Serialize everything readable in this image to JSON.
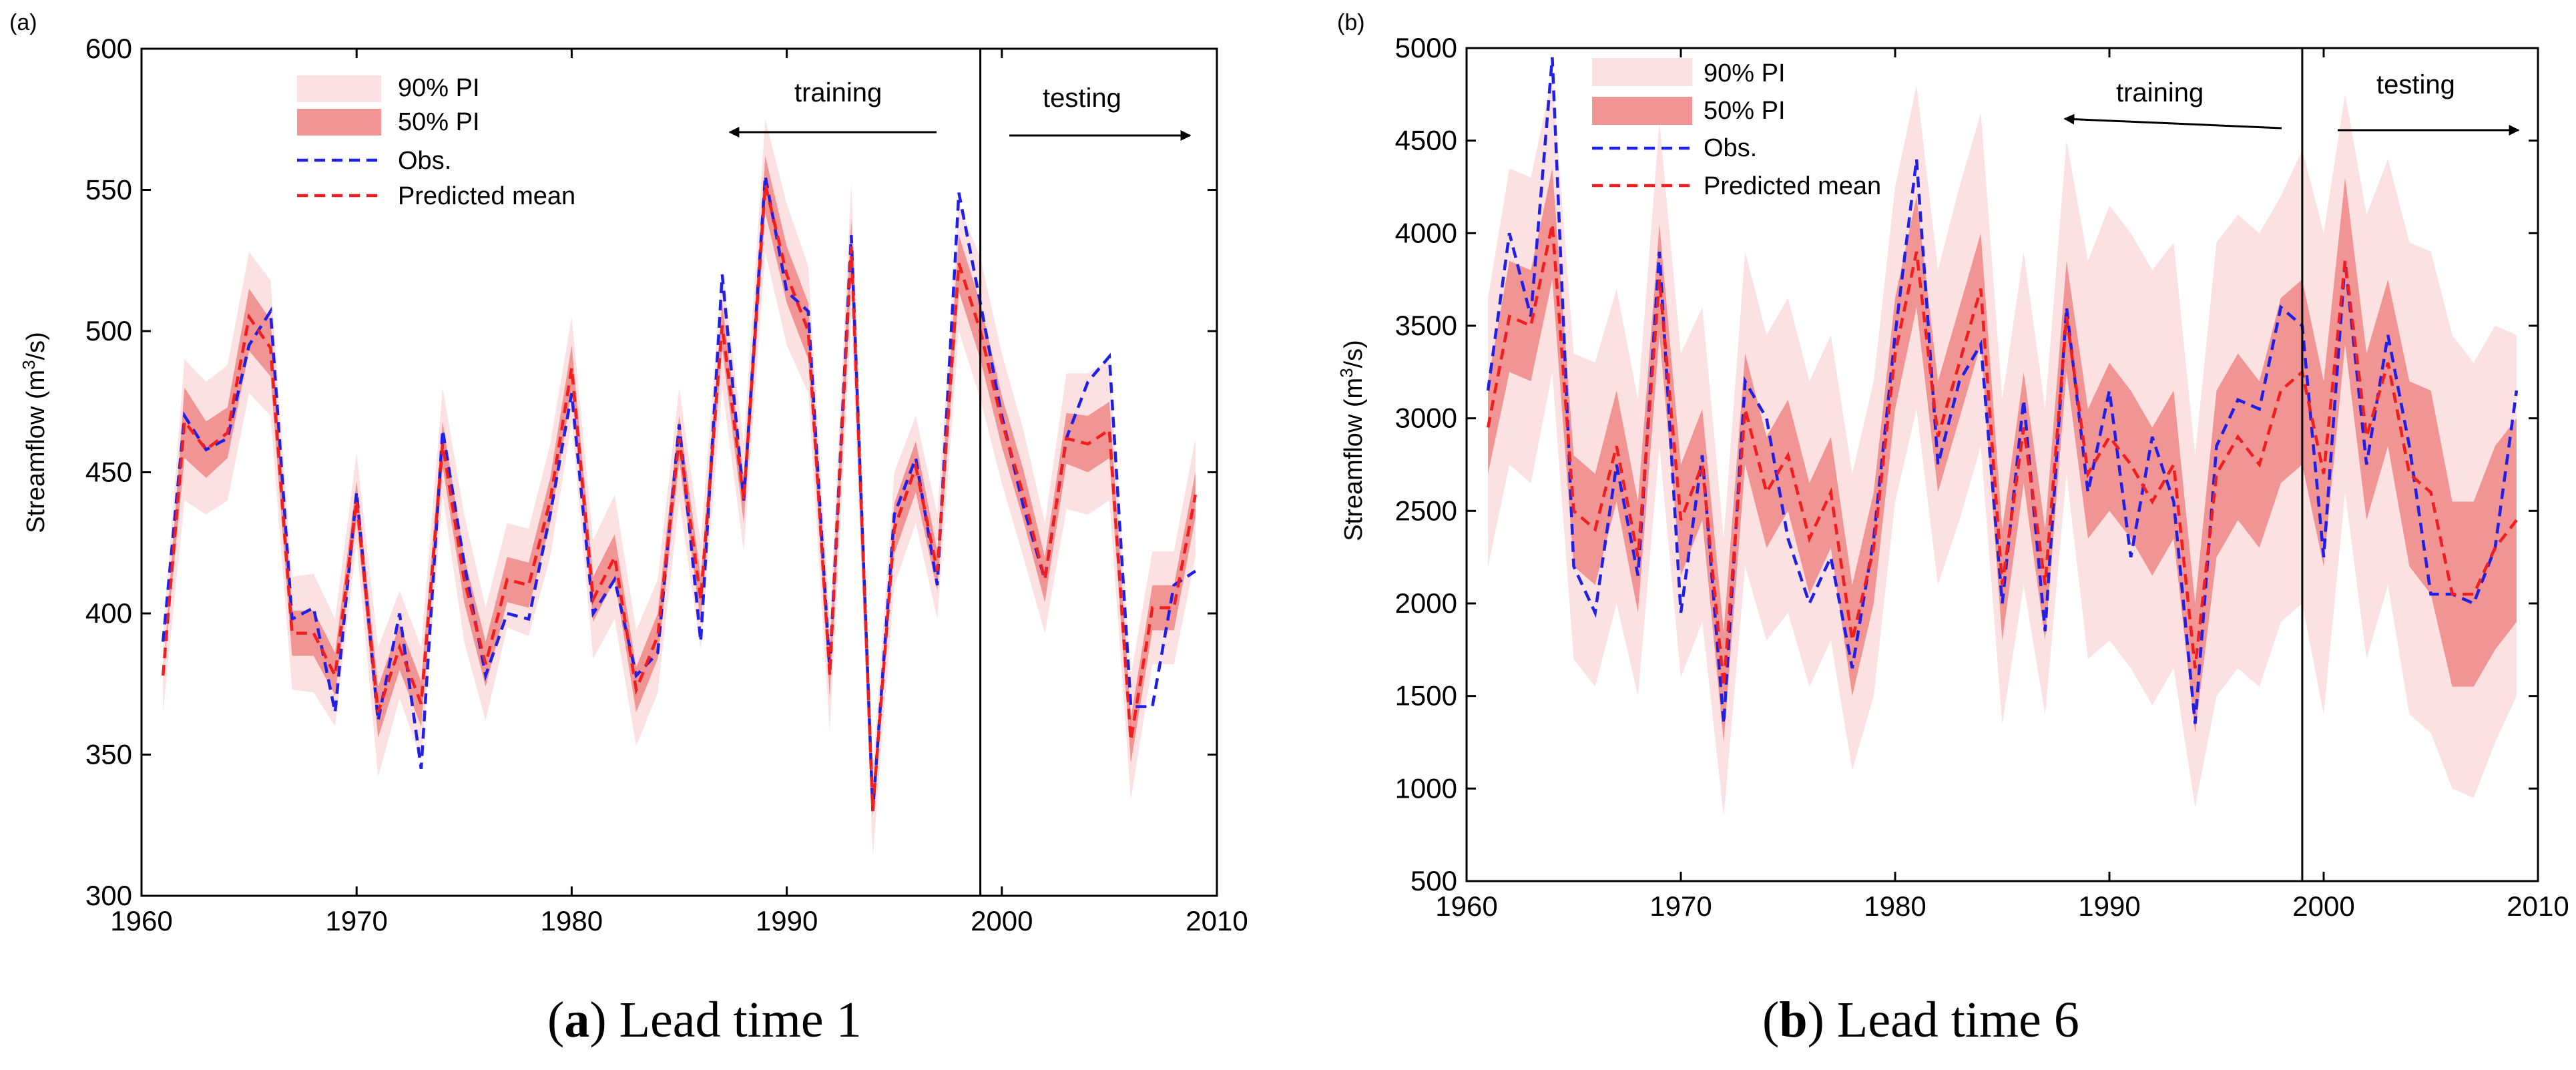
{
  "chart_data": [
    {
      "panel": "(a)",
      "type": "line",
      "title": "",
      "xlabel": "",
      "ylabel_text": "Streamflow (m",
      "ylabel_sup": "3",
      "ylabel_tail": "/s)",
      "xlim": [
        1960,
        2010
      ],
      "ylim": [
        300,
        600
      ],
      "xticks": [
        1960,
        1970,
        1980,
        1990,
        2000,
        2010
      ],
      "yticks": [
        300,
        350,
        400,
        450,
        500,
        550,
        600
      ],
      "split_year": 1999,
      "training_label": "training",
      "testing_label": "testing",
      "legend": [
        "90% PI",
        "50% PI",
        "Obs.",
        "Predicted mean"
      ],
      "colors": {
        "pi90": "#fbe1e1",
        "pi50": "#f19494",
        "obs": "#1f1fe6",
        "pred": "#f01e1e"
      },
      "x": [
        1961,
        1962,
        1963,
        1964,
        1965,
        1966,
        1967,
        1968,
        1969,
        1970,
        1971,
        1972,
        1973,
        1974,
        1975,
        1976,
        1977,
        1978,
        1979,
        1980,
        1981,
        1982,
        1983,
        1984,
        1985,
        1986,
        1987,
        1988,
        1989,
        1990,
        1991,
        1992,
        1993,
        1994,
        1995,
        1996,
        1997,
        1998,
        1999,
        2000,
        2001,
        2002,
        2003,
        2004,
        2005,
        2006,
        2007,
        2008,
        2009
      ],
      "series": [
        {
          "name": "Predicted mean",
          "values": [
            378,
            468,
            458,
            464,
            505,
            494,
            393,
            393,
            378,
            440,
            365,
            388,
            368,
            460,
            412,
            382,
            412,
            410,
            440,
            487,
            405,
            420,
            373,
            392,
            462,
            405,
            502,
            440,
            552,
            520,
            500,
            378,
            530,
            330,
            430,
            452,
            415,
            524,
            500,
            468,
            442,
            412,
            462,
            460,
            465,
            355,
            402,
            402,
            442
          ]
        },
        {
          "name": "Obs.",
          "values": [
            390,
            470,
            458,
            462,
            495,
            507,
            398,
            402,
            365,
            443,
            362,
            400,
            345,
            465,
            418,
            378,
            400,
            398,
            435,
            478,
            400,
            412,
            378,
            386,
            467,
            390,
            520,
            440,
            555,
            514,
            507,
            380,
            534,
            330,
            435,
            455,
            410,
            549,
            510,
            470,
            438,
            412,
            462,
            482,
            491,
            367,
            367,
            410,
            415
          ]
        },
        {
          "name": "50% PI lower",
          "values": [
            378,
            455,
            448,
            455,
            493,
            484,
            385,
            385,
            371,
            433,
            356,
            380,
            360,
            452,
            404,
            374,
            404,
            402,
            432,
            479,
            397,
            412,
            365,
            384,
            454,
            397,
            494,
            432,
            542,
            510,
            490,
            370,
            520,
            328,
            421,
            443,
            408,
            514,
            490,
            459,
            433,
            404,
            453,
            450,
            455,
            347,
            394,
            394,
            434
          ]
        },
        {
          "name": "50% PI upper",
          "values": [
            378,
            480,
            468,
            473,
            515,
            504,
            401,
            401,
            386,
            447,
            374,
            396,
            376,
            468,
            420,
            390,
            420,
            418,
            448,
            495,
            413,
            428,
            381,
            400,
            470,
            413,
            510,
            448,
            562,
            530,
            510,
            386,
            540,
            332,
            439,
            461,
            422,
            534,
            510,
            477,
            451,
            420,
            471,
            470,
            475,
            363,
            410,
            410,
            450
          ]
        },
        {
          "name": "90% PI lower",
          "values": [
            365,
            440,
            435,
            440,
            478,
            470,
            373,
            372,
            360,
            425,
            342,
            370,
            348,
            442,
            390,
            362,
            395,
            392,
            420,
            468,
            384,
            398,
            353,
            372,
            440,
            387,
            480,
            422,
            528,
            495,
            478,
            358,
            505,
            314,
            410,
            432,
            398,
            500,
            476,
            446,
            420,
            393,
            437,
            435,
            440,
            334,
            382,
            382,
            420
          ]
        },
        {
          "name": "90% PI upper",
          "values": [
            392,
            490,
            482,
            488,
            528,
            518,
            413,
            414,
            398,
            457,
            388,
            408,
            388,
            480,
            435,
            402,
            432,
            430,
            460,
            505,
            426,
            442,
            394,
            412,
            480,
            425,
            522,
            460,
            575,
            545,
            523,
            398,
            553,
            345,
            450,
            470,
            435,
            545,
            526,
            492,
            465,
            432,
            485,
            485,
            490,
            378,
            422,
            422,
            462
          ]
        }
      ]
    },
    {
      "panel": "(b)",
      "type": "line",
      "title": "",
      "xlabel": "",
      "ylabel_text": "Streamflow (m",
      "ylabel_sup": "3",
      "ylabel_tail": "/s)",
      "xlim": [
        1960,
        2010
      ],
      "ylim": [
        500,
        5000
      ],
      "xticks": [
        1960,
        1970,
        1980,
        1990,
        2000,
        2010
      ],
      "yticks": [
        500,
        1000,
        1500,
        2000,
        2500,
        3000,
        3500,
        4000,
        4500,
        5000
      ],
      "split_year": 1999,
      "training_label": "training",
      "testing_label": "testing",
      "legend": [
        "90% PI",
        "50% PI",
        "Obs.",
        "Predicted mean"
      ],
      "colors": {
        "pi90": "#fbe1e1",
        "pi50": "#f19494",
        "obs": "#1f1fe6",
        "pred": "#f01e1e"
      },
      "x": [
        1961,
        1962,
        1963,
        1964,
        1965,
        1966,
        1967,
        1968,
        1969,
        1970,
        1971,
        1972,
        1973,
        1974,
        1975,
        1976,
        1977,
        1978,
        1979,
        1980,
        1981,
        1982,
        1983,
        1984,
        1985,
        1986,
        1987,
        1988,
        1989,
        1990,
        1991,
        1992,
        1993,
        1994,
        1995,
        1996,
        1997,
        1998,
        1999,
        2000,
        2001,
        2002,
        2003,
        2004,
        2005,
        2006,
        2007,
        2008,
        2009
      ],
      "series": [
        {
          "name": "Predicted mean",
          "values": [
            2950,
            3550,
            3500,
            4050,
            2500,
            2400,
            2850,
            2250,
            3750,
            2450,
            2750,
            1550,
            3050,
            2600,
            2800,
            2350,
            2600,
            1800,
            2300,
            3350,
            3900,
            2900,
            3300,
            3700,
            2100,
            2950,
            2100,
            3550,
            2700,
            2900,
            2750,
            2550,
            2750,
            1650,
            2700,
            2900,
            2750,
            3150,
            3250,
            2700,
            3850,
            2900,
            3300,
            2700,
            2600,
            2050,
            2050,
            2300,
            2450
          ]
        },
        {
          "name": "Obs.",
          "values": [
            3150,
            4000,
            3550,
            4950,
            2200,
            1950,
            2750,
            2150,
            3900,
            1950,
            2800,
            1350,
            3200,
            3000,
            2350,
            2000,
            2250,
            1650,
            2350,
            3450,
            4400,
            2750,
            3200,
            3400,
            2000,
            3100,
            1850,
            3600,
            2600,
            3150,
            2250,
            2900,
            2550,
            1350,
            2850,
            3100,
            3050,
            3600,
            3500,
            2250,
            3850,
            2750,
            3450,
            2850,
            2050,
            2050,
            2000,
            2300,
            3150
          ]
        },
        {
          "name": "50% PI lower",
          "values": [
            2700,
            3250,
            3200,
            3750,
            2200,
            2100,
            2550,
            1950,
            3450,
            2150,
            2450,
            1250,
            2750,
            2300,
            2500,
            2050,
            2300,
            1500,
            2000,
            3050,
            3600,
            2600,
            3000,
            3400,
            1800,
            2650,
            1800,
            3250,
            2350,
            2500,
            2350,
            2150,
            2350,
            1300,
            2250,
            2450,
            2300,
            2650,
            2750,
            2200,
            3400,
            2450,
            2850,
            2200,
            2050,
            1550,
            1550,
            1750,
            1900
          ]
        },
        {
          "name": "50% PI upper",
          "values": [
            3200,
            3850,
            3800,
            4350,
            2800,
            2700,
            3150,
            2550,
            4050,
            2750,
            3050,
            1850,
            3350,
            2900,
            3100,
            2650,
            2900,
            2100,
            2600,
            3650,
            4200,
            3200,
            3600,
            4000,
            2400,
            3250,
            2400,
            3850,
            3050,
            3300,
            3150,
            2950,
            3150,
            2000,
            3150,
            3350,
            3200,
            3650,
            3750,
            3200,
            4300,
            3350,
            3750,
            3200,
            3150,
            2550,
            2550,
            2850,
            3000
          ]
        },
        {
          "name": "90% PI lower",
          "values": [
            2200,
            2750,
            2650,
            3250,
            1700,
            1550,
            2000,
            1500,
            2850,
            1600,
            1900,
            850,
            2200,
            1800,
            1950,
            1550,
            1800,
            1100,
            1500,
            2550,
            3050,
            2100,
            2450,
            2850,
            1350,
            2100,
            1400,
            2700,
            1700,
            1800,
            1650,
            1450,
            1650,
            900,
            1500,
            1650,
            1550,
            1900,
            2000,
            1400,
            2600,
            1700,
            2100,
            1400,
            1300,
            1000,
            950,
            1250,
            1500
          ]
        },
        {
          "name": "90% PI upper",
          "values": [
            3650,
            4350,
            4300,
            4850,
            3350,
            3300,
            3700,
            3100,
            4600,
            3350,
            3600,
            2350,
            3900,
            3450,
            3650,
            3200,
            3450,
            2700,
            3200,
            4250,
            4800,
            3800,
            4250,
            4650,
            3100,
            3900,
            3050,
            4500,
            3850,
            4150,
            4000,
            3800,
            3950,
            2800,
            3950,
            4100,
            4000,
            4200,
            4450,
            4000,
            4750,
            4100,
            4400,
            3950,
            3900,
            3450,
            3300,
            3500,
            3450
          ]
        }
      ]
    }
  ],
  "captions": [
    {
      "letter": "a",
      "text": "Lead time 1"
    },
    {
      "letter": "b",
      "text": "Lead time 6"
    }
  ]
}
